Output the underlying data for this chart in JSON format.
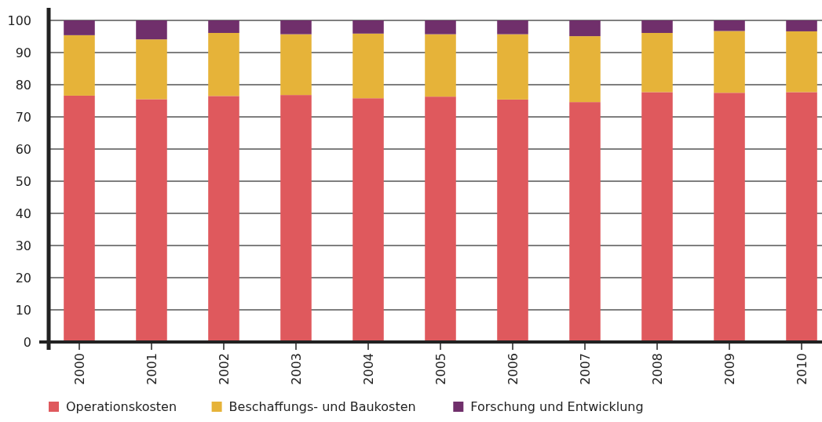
{
  "chart_data": {
    "type": "bar",
    "stacked": true,
    "categories": [
      "2000",
      "2001",
      "2002",
      "2003",
      "2004",
      "2005",
      "2006",
      "2007",
      "2008",
      "2009",
      "2010"
    ],
    "series": [
      {
        "name": "Operationskosten",
        "color": "#df595d",
        "values": [
          76.6,
          75.5,
          76.5,
          76.8,
          75.8,
          76.3,
          75.4,
          74.6,
          77.7,
          77.5,
          77.7
        ]
      },
      {
        "name": "Beschaffungs- und Baukosten",
        "color": "#e6b339",
        "values": [
          18.8,
          18.6,
          19.6,
          18.9,
          20.1,
          19.4,
          20.3,
          20.5,
          18.4,
          19.2,
          18.9
        ]
      },
      {
        "name": "Forschung und Entwicklung",
        "color": "#702f6b",
        "values": [
          4.6,
          5.9,
          3.9,
          4.3,
          4.1,
          4.3,
          4.3,
          4.9,
          3.9,
          3.3,
          3.4
        ]
      }
    ],
    "ylim": [
      0,
      100
    ],
    "yticks": [
      0,
      10,
      20,
      30,
      40,
      50,
      60,
      70,
      80,
      90,
      100
    ],
    "grid": "y",
    "legend": "bottom left"
  }
}
